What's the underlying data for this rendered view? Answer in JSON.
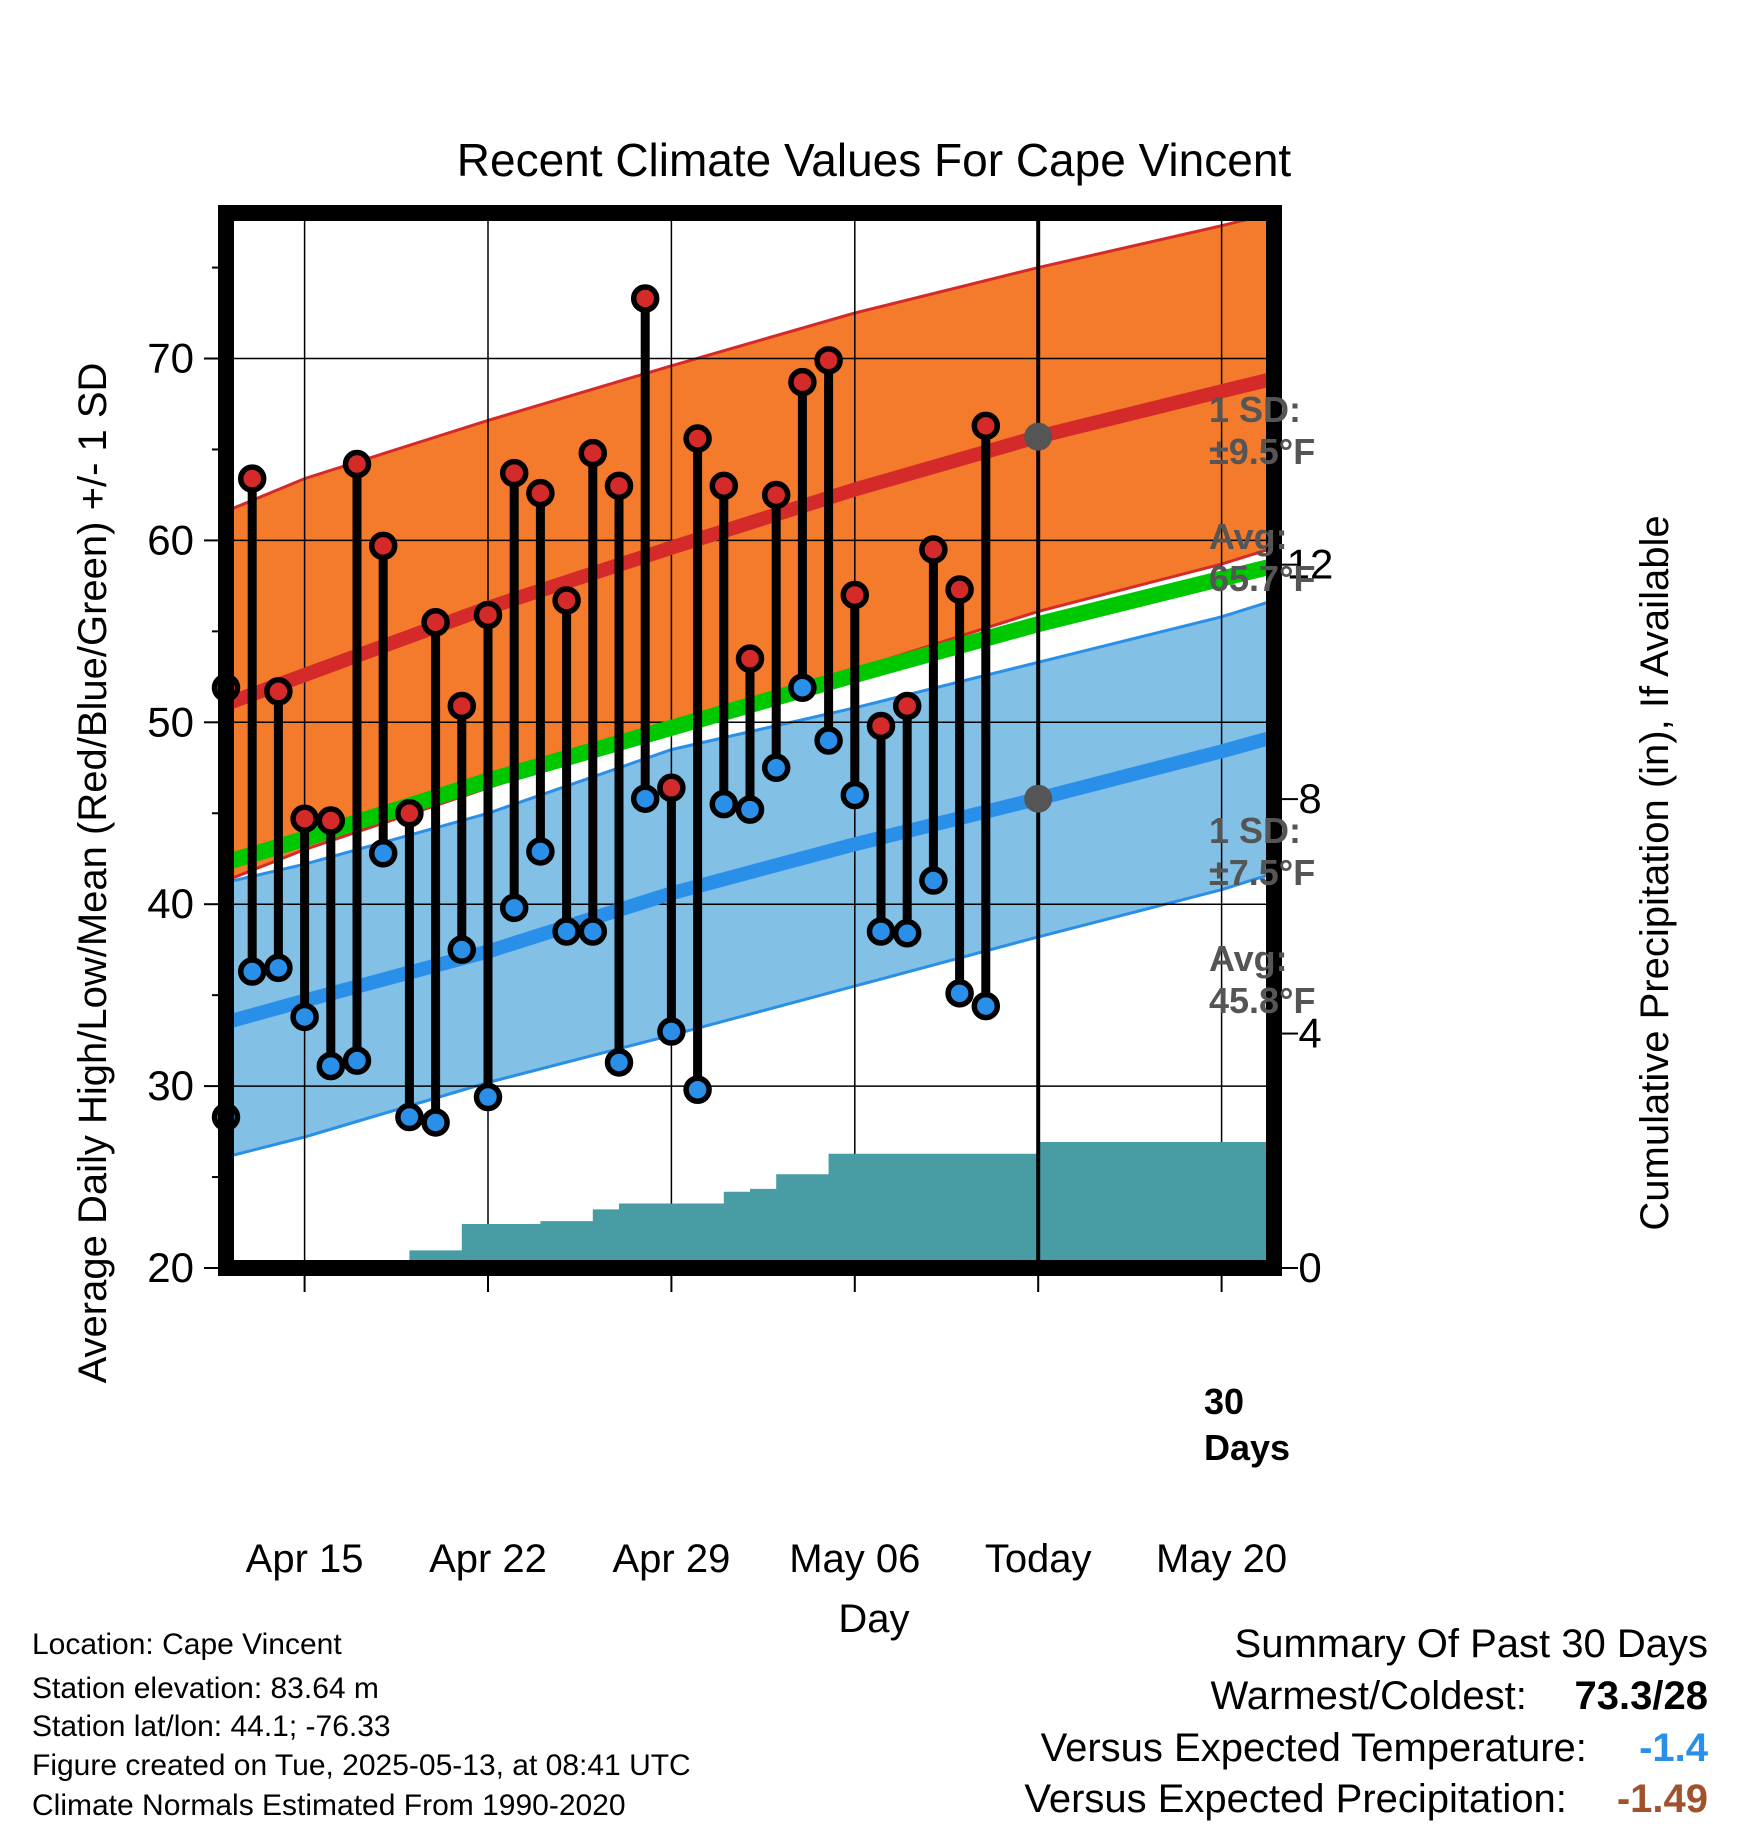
{
  "colors": {
    "high": "#d42a2a",
    "low": "#2a8fe8",
    "mean": "#00c800",
    "high_band": "#f47a2c",
    "low_band": "#82c0e6",
    "precip": "#489ca4",
    "avg_marker": "#555555",
    "annotation": "#555555",
    "vs_temp": "#2a8fe8",
    "vs_precip": "#a0522d"
  },
  "chart_data": {
    "type": "line",
    "title": "Recent Climate Values For Cape Vincent",
    "xlabel": "Day",
    "ylabel": "Average Daily High/Low/Mean (Red/Blue/Green) +/- 1 SD",
    "y2label": "Cumulative Precipitation (in), If Available",
    "xlim": [
      "Apr 12",
      "May 22"
    ],
    "ylim": [
      20,
      78
    ],
    "y2lim": [
      0,
      18
    ],
    "yticks": [
      20,
      30,
      40,
      50,
      60,
      70
    ],
    "y2ticks": [
      0,
      4,
      8,
      12
    ],
    "xticks": [
      {
        "date": "Apr 15",
        "label": "Apr 15"
      },
      {
        "date": "Apr 22",
        "label": "Apr 22"
      },
      {
        "date": "Apr 29",
        "label": "Apr 29"
      },
      {
        "date": "May 06",
        "label": "May 06"
      },
      {
        "date": "May 13",
        "label": "Today"
      },
      {
        "date": "May 20",
        "label": "May 20"
      }
    ],
    "grid": true,
    "today": "May 13",
    "normals": {
      "dates": [
        "Apr 12",
        "Apr 15",
        "Apr 22",
        "Apr 29",
        "May 06",
        "May 13",
        "May 20",
        "May 22"
      ],
      "avg_high": [
        51.0,
        52.6,
        56.3,
        59.6,
        62.8,
        65.7,
        68.2,
        68.9
      ],
      "avg_mean": [
        42.3,
        43.6,
        46.8,
        49.7,
        52.6,
        55.4,
        57.9,
        58.6
      ],
      "avg_low": [
        33.5,
        34.7,
        37.4,
        40.6,
        43.3,
        45.8,
        48.4,
        49.2
      ],
      "high_upper": [
        61.6,
        63.4,
        66.6,
        69.6,
        72.5,
        75.0,
        77.3,
        78.0
      ],
      "high_lower": [
        41.3,
        43.0,
        46.4,
        49.8,
        52.9,
        56.1,
        58.7,
        59.6
      ],
      "low_upper": [
        41.2,
        42.2,
        45.0,
        48.5,
        50.8,
        53.3,
        55.8,
        56.7
      ],
      "low_lower": [
        26.1,
        27.2,
        30.2,
        32.8,
        35.5,
        38.2,
        40.8,
        41.7
      ]
    },
    "series": [
      {
        "name": "High",
        "x": [
          "Apr 12",
          "Apr 13",
          "Apr 14",
          "Apr 15",
          "Apr 16",
          "Apr 17",
          "Apr 18",
          "Apr 19",
          "Apr 20",
          "Apr 21",
          "Apr 22",
          "Apr 23",
          "Apr 24",
          "Apr 25",
          "Apr 26",
          "Apr 27",
          "Apr 28",
          "Apr 29",
          "Apr 30",
          "May 01",
          "May 02",
          "May 03",
          "May 04",
          "May 05",
          "May 06",
          "May 07",
          "May 08",
          "May 09",
          "May 10",
          "May 11",
          "May 12"
        ],
        "values": [
          51.9,
          63.4,
          51.7,
          44.7,
          44.6,
          64.2,
          59.7,
          45.0,
          55.5,
          50.9,
          55.9,
          63.7,
          62.6,
          56.7,
          64.8,
          63.0,
          73.3,
          46.4,
          65.6,
          63.0,
          53.5,
          62.5,
          68.7,
          69.9,
          57.0,
          49.8,
          50.9,
          59.5,
          57.3,
          66.3,
          null
        ]
      },
      {
        "name": "Low",
        "x": [
          "Apr 12",
          "Apr 13",
          "Apr 14",
          "Apr 15",
          "Apr 16",
          "Apr 17",
          "Apr 18",
          "Apr 19",
          "Apr 20",
          "Apr 21",
          "Apr 22",
          "Apr 23",
          "Apr 24",
          "Apr 25",
          "Apr 26",
          "Apr 27",
          "Apr 28",
          "Apr 29",
          "Apr 30",
          "May 01",
          "May 02",
          "May 03",
          "May 04",
          "May 05",
          "May 06",
          "May 07",
          "May 08",
          "May 09",
          "May 10",
          "May 11",
          "May 12"
        ],
        "values": [
          28.3,
          36.3,
          36.5,
          33.8,
          31.1,
          31.4,
          42.8,
          28.3,
          28.0,
          37.5,
          29.4,
          39.8,
          42.9,
          38.5,
          38.5,
          31.3,
          45.8,
          33.0,
          29.8,
          45.5,
          45.2,
          47.5,
          51.9,
          49.0,
          46.0,
          38.5,
          38.4,
          41.3,
          35.1,
          34.4,
          null
        ]
      },
      {
        "name": "Cumulative Precipitation",
        "x": [
          "Apr 12",
          "Apr 18",
          "Apr 19",
          "Apr 20",
          "Apr 21",
          "Apr 22",
          "Apr 23",
          "Apr 24",
          "Apr 25",
          "Apr 26",
          "Apr 27",
          "Apr 28",
          "Apr 29",
          "Apr 30",
          "May 01",
          "May 02",
          "May 03",
          "May 04",
          "May 05",
          "May 13",
          "May 22"
        ],
        "values": [
          0.0,
          0.0,
          0.3,
          0.3,
          0.75,
          0.75,
          0.75,
          0.8,
          0.8,
          1.0,
          1.1,
          1.1,
          1.1,
          1.1,
          1.3,
          1.35,
          1.6,
          1.6,
          1.95,
          2.15,
          2.15
        ]
      }
    ],
    "annotations": {
      "high_sd_line1": "1 SD:",
      "high_sd_line2": "±9.5°F",
      "high_avg_line1": "Avg:",
      "high_avg_line2": "65.7°F",
      "low_sd_line1": "1 SD:",
      "low_sd_line2": "±7.5°F",
      "low_avg_line1": "Avg:",
      "low_avg_line2": "45.8°F",
      "precip_line1": "30",
      "precip_line2": "Days"
    }
  },
  "footer": {
    "location": "Location: Cape Vincent",
    "elevation": "Station elevation: 83.64 m",
    "latlon": "Station lat/lon: 44.1; -76.33",
    "created": "Figure created on Tue, 2025-05-13, at 08:41 UTC",
    "normals": "Climate Normals Estimated From 1990-2020"
  },
  "summary": {
    "title": "Summary Of Past 30 Days",
    "warmest_label": "Warmest/Coldest:",
    "warmest_value": "73.3/28",
    "vs_temp_label": "Versus Expected Temperature:",
    "vs_temp_value": "-1.4",
    "vs_precip_label": "Versus Expected Precipitation:",
    "vs_precip_value": "-1.49"
  }
}
